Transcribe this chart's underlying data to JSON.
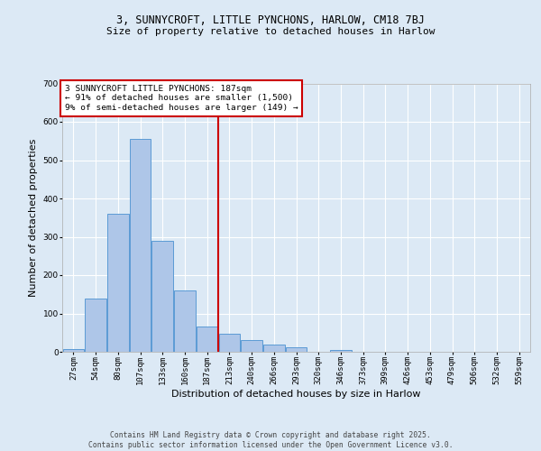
{
  "title1": "3, SUNNYCROFT, LITTLE PYNCHONS, HARLOW, CM18 7BJ",
  "title2": "Size of property relative to detached houses in Harlow",
  "xlabel": "Distribution of detached houses by size in Harlow",
  "ylabel": "Number of detached properties",
  "categories": [
    "27sqm",
    "54sqm",
    "80sqm",
    "107sqm",
    "133sqm",
    "160sqm",
    "187sqm",
    "213sqm",
    "240sqm",
    "266sqm",
    "293sqm",
    "320sqm",
    "346sqm",
    "373sqm",
    "399sqm",
    "426sqm",
    "453sqm",
    "479sqm",
    "506sqm",
    "532sqm",
    "559sqm"
  ],
  "bar_heights": [
    8,
    138,
    360,
    555,
    290,
    160,
    65,
    47,
    30,
    18,
    12,
    0,
    5,
    0,
    0,
    0,
    0,
    0,
    0,
    0,
    0
  ],
  "bar_color": "#aec6e8",
  "bar_edge_color": "#5b9bd5",
  "vline_index": 6,
  "vline_color": "#cc0000",
  "ylim": [
    0,
    700
  ],
  "yticks": [
    0,
    100,
    200,
    300,
    400,
    500,
    600,
    700
  ],
  "background_color": "#dce9f5",
  "plot_bg_color": "#dce9f5",
  "annotation_text": "3 SUNNYCROFT LITTLE PYNCHONS: 187sqm\n← 91% of detached houses are smaller (1,500)\n9% of semi-detached houses are larger (149) →",
  "annotation_box_color": "#ffffff",
  "annotation_box_edge": "#cc0000",
  "footer": "Contains HM Land Registry data © Crown copyright and database right 2025.\nContains public sector information licensed under the Open Government Licence v3.0.",
  "title_fontsize": 8.5,
  "subtitle_fontsize": 8,
  "tick_fontsize": 6.5,
  "label_fontsize": 8,
  "annotation_fontsize": 6.8,
  "footer_fontsize": 5.8
}
